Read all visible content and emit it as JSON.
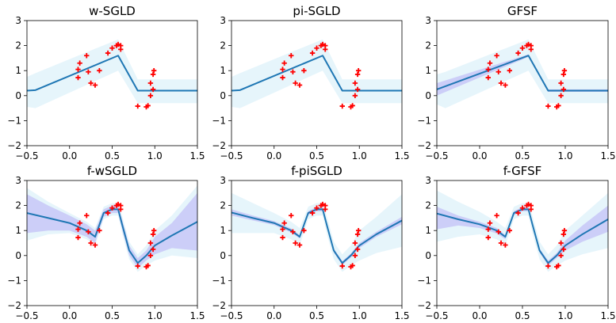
{
  "chart_data": [
    {
      "type": "line",
      "title": "w-SGLD",
      "xlim": [
        -0.5,
        1.5
      ],
      "ylim": [
        -2,
        3
      ],
      "xticks": [
        "-0.5",
        "0.0",
        "0.5",
        "1.0",
        "1.5"
      ],
      "yticks": [
        "-2",
        "-1",
        "0",
        "1",
        "2",
        "3"
      ],
      "mean": {
        "x": [
          -0.5,
          -0.4,
          0.57,
          0.8,
          1.5
        ],
        "y": [
          0.2,
          0.22,
          1.6,
          0.2,
          0.2
        ]
      },
      "band_outer": {
        "x": [
          -0.5,
          -0.4,
          0.57,
          0.8,
          1.5
        ],
        "upper": [
          0.75,
          0.9,
          2.25,
          0.65,
          0.65
        ],
        "lower": [
          -0.45,
          -0.5,
          1.0,
          -0.3,
          -0.3
        ]
      },
      "band_inner": null,
      "points": {
        "x": [
          0.1,
          0.1,
          0.12,
          0.2,
          0.22,
          0.25,
          0.3,
          0.35,
          0.45,
          0.5,
          0.55,
          0.57,
          0.6,
          0.6,
          0.8,
          0.9,
          0.92,
          0.95,
          0.95,
          0.98,
          0.98,
          0.99
        ],
        "y": [
          1.05,
          0.72,
          1.3,
          1.6,
          0.95,
          0.5,
          0.42,
          1.0,
          1.7,
          1.9,
          2.0,
          2.05,
          1.85,
          2.0,
          -0.42,
          -0.45,
          -0.4,
          0.0,
          0.5,
          0.85,
          0.25,
          1.0
        ]
      },
      "colors": {
        "mean": "#1f77b4",
        "band_outer": "#e6f5fb",
        "band_inner": "#c7c7f7",
        "points": "#ff0000"
      }
    },
    {
      "type": "line",
      "title": "pi-SGLD",
      "xlim": [
        -0.5,
        1.5
      ],
      "ylim": [
        -2,
        3
      ],
      "xticks": [
        "-0.5",
        "0.0",
        "0.5",
        "1.0",
        "1.5"
      ],
      "yticks": [
        "-2",
        "-1",
        "0",
        "1",
        "2",
        "3"
      ],
      "mean": {
        "x": [
          -0.5,
          -0.4,
          0.57,
          0.8,
          1.5
        ],
        "y": [
          0.2,
          0.22,
          1.6,
          0.2,
          0.2
        ]
      },
      "band_outer": {
        "x": [
          -0.5,
          -0.4,
          0.57,
          0.8,
          1.5
        ],
        "upper": [
          0.75,
          0.9,
          2.25,
          0.65,
          0.65
        ],
        "lower": [
          -0.45,
          -0.5,
          1.0,
          -0.3,
          -0.3
        ]
      },
      "band_inner": null,
      "points": {
        "x": [
          0.1,
          0.1,
          0.12,
          0.2,
          0.22,
          0.25,
          0.3,
          0.35,
          0.45,
          0.5,
          0.55,
          0.57,
          0.6,
          0.6,
          0.8,
          0.9,
          0.92,
          0.95,
          0.95,
          0.98,
          0.98,
          0.99
        ],
        "y": [
          1.05,
          0.72,
          1.3,
          1.6,
          0.95,
          0.5,
          0.42,
          1.0,
          1.7,
          1.9,
          2.0,
          2.05,
          1.85,
          2.0,
          -0.42,
          -0.45,
          -0.4,
          0.0,
          0.5,
          0.85,
          0.25,
          1.0
        ]
      },
      "colors": {
        "mean": "#1f77b4",
        "band_outer": "#e6f5fb",
        "band_inner": "#c7c7f7",
        "points": "#ff0000"
      }
    },
    {
      "type": "line",
      "title": "GFSF",
      "xlim": [
        -0.5,
        1.5
      ],
      "ylim": [
        -2,
        3
      ],
      "xticks": [
        "-0.5",
        "0.0",
        "0.5",
        "1.0",
        "1.5"
      ],
      "yticks": [
        "-2",
        "-1",
        "0",
        "1",
        "2",
        "3"
      ],
      "mean": {
        "x": [
          -0.5,
          0.57,
          0.8,
          1.5
        ],
        "y": [
          0.25,
          1.6,
          0.2,
          0.2
        ]
      },
      "band_outer": {
        "x": [
          -0.5,
          -0.4,
          0.57,
          0.8,
          1.5
        ],
        "upper": [
          0.85,
          0.95,
          2.25,
          0.65,
          0.65
        ],
        "lower": [
          -0.35,
          -0.5,
          1.0,
          -0.3,
          -0.3
        ]
      },
      "band_inner": {
        "x": [
          -0.5,
          0.57,
          0.8,
          1.5
        ],
        "upper": [
          0.5,
          1.65,
          0.25,
          0.25
        ],
        "lower": [
          0.0,
          1.55,
          0.15,
          0.15
        ]
      },
      "points": {
        "x": [
          0.1,
          0.1,
          0.12,
          0.2,
          0.22,
          0.25,
          0.3,
          0.35,
          0.45,
          0.5,
          0.55,
          0.57,
          0.6,
          0.6,
          0.8,
          0.9,
          0.92,
          0.95,
          0.95,
          0.98,
          0.98,
          0.99
        ],
        "y": [
          1.05,
          0.72,
          1.3,
          1.6,
          0.95,
          0.5,
          0.42,
          1.0,
          1.7,
          1.9,
          2.0,
          2.05,
          1.85,
          2.0,
          -0.42,
          -0.45,
          -0.4,
          0.0,
          0.5,
          0.85,
          0.25,
          1.0
        ]
      },
      "colors": {
        "mean": "#1f77b4",
        "band_outer": "#e6f5fb",
        "band_inner": "#c7c7f7",
        "points": "#ff0000"
      }
    },
    {
      "type": "line",
      "title": "f-wSGLD",
      "xlim": [
        -0.5,
        1.5
      ],
      "ylim": [
        -2,
        3
      ],
      "xticks": [
        "-0.5",
        "0.0",
        "0.5",
        "1.0",
        "1.5"
      ],
      "yticks": [
        "-2",
        "-1",
        "0",
        "1",
        "2",
        "3"
      ],
      "mean": {
        "x": [
          -0.5,
          -0.25,
          0.0,
          0.2,
          0.3,
          0.4,
          0.5,
          0.57,
          0.62,
          0.7,
          0.8,
          0.9,
          1.0,
          1.2,
          1.5
        ],
        "y": [
          1.7,
          1.5,
          1.3,
          1.0,
          0.75,
          1.7,
          1.85,
          1.85,
          1.2,
          0.2,
          -0.3,
          0.0,
          0.4,
          0.8,
          1.35
        ]
      },
      "band_outer": {
        "x": [
          -0.5,
          -0.25,
          0.0,
          0.2,
          0.3,
          0.4,
          0.5,
          0.57,
          0.62,
          0.7,
          0.8,
          0.9,
          1.0,
          1.2,
          1.5
        ],
        "upper": [
          2.7,
          2.15,
          1.7,
          1.35,
          1.1,
          1.95,
          2.1,
          2.1,
          1.55,
          0.55,
          0.05,
          0.4,
          1.0,
          1.6,
          2.8
        ],
        "lower": [
          0.6,
          0.85,
          0.9,
          0.65,
          0.4,
          1.45,
          1.6,
          1.6,
          0.85,
          -0.15,
          -0.65,
          -0.4,
          -0.2,
          0.0,
          -0.1
        ]
      },
      "band_inner": {
        "x": [
          -0.5,
          -0.25,
          0.0,
          0.2,
          0.3,
          0.4,
          0.5,
          0.57,
          0.62,
          0.7,
          0.8,
          0.9,
          1.0,
          1.2,
          1.5
        ],
        "upper": [
          2.45,
          2.0,
          1.6,
          1.25,
          1.0,
          1.85,
          2.0,
          2.0,
          1.4,
          0.4,
          -0.1,
          0.2,
          0.75,
          1.3,
          2.5
        ],
        "lower": [
          0.9,
          1.0,
          1.0,
          0.75,
          0.5,
          1.55,
          1.7,
          1.7,
          1.0,
          0.0,
          -0.5,
          -0.2,
          0.05,
          0.3,
          0.2
        ]
      },
      "points": {
        "x": [
          0.1,
          0.1,
          0.12,
          0.2,
          0.22,
          0.25,
          0.3,
          0.35,
          0.45,
          0.5,
          0.55,
          0.57,
          0.6,
          0.6,
          0.8,
          0.9,
          0.92,
          0.95,
          0.95,
          0.98,
          0.98,
          0.99
        ],
        "y": [
          1.05,
          0.72,
          1.3,
          1.6,
          0.95,
          0.5,
          0.42,
          1.0,
          1.7,
          1.9,
          2.0,
          2.05,
          1.85,
          2.0,
          -0.42,
          -0.45,
          -0.4,
          0.0,
          0.5,
          0.85,
          0.25,
          1.0
        ]
      },
      "colors": {
        "mean": "#1f77b4",
        "band_outer": "#e6f5fb",
        "band_inner": "#c7c7f7",
        "points": "#ff0000"
      }
    },
    {
      "type": "line",
      "title": "f-piSGLD",
      "xlim": [
        -0.5,
        1.5
      ],
      "ylim": [
        -2,
        3
      ],
      "xticks": [
        "-0.5",
        "0.0",
        "0.5",
        "1.0",
        "1.5"
      ],
      "yticks": [
        "-2",
        "-1",
        "0",
        "1",
        "2",
        "3"
      ],
      "mean": {
        "x": [
          -0.5,
          -0.25,
          0.0,
          0.2,
          0.3,
          0.4,
          0.5,
          0.57,
          0.62,
          0.7,
          0.8,
          0.9,
          1.0,
          1.2,
          1.5
        ],
        "y": [
          1.72,
          1.5,
          1.3,
          1.0,
          0.75,
          1.7,
          1.85,
          1.85,
          1.2,
          0.2,
          -0.3,
          0.0,
          0.4,
          0.85,
          1.4
        ]
      },
      "band_outer": {
        "x": [
          -0.5,
          -0.25,
          0.0,
          0.2,
          0.3,
          0.4,
          0.5,
          0.57,
          0.62,
          0.7,
          0.8,
          0.9,
          1.0,
          1.2,
          1.5
        ],
        "upper": [
          2.5,
          2.1,
          1.7,
          1.35,
          1.1,
          1.95,
          2.1,
          2.1,
          1.55,
          0.55,
          0.05,
          0.4,
          1.0,
          1.55,
          2.45
        ],
        "lower": [
          0.9,
          0.9,
          0.9,
          0.65,
          0.4,
          1.45,
          1.6,
          1.6,
          0.85,
          -0.15,
          -0.65,
          -0.4,
          -0.2,
          0.1,
          0.35
        ]
      },
      "band_inner": {
        "x": [
          -0.5,
          -0.25,
          0.0,
          0.2,
          0.3,
          0.4,
          0.5,
          0.57,
          0.62,
          0.7,
          0.8,
          0.9,
          1.0,
          1.2,
          1.5
        ],
        "upper": [
          1.85,
          1.6,
          1.38,
          1.08,
          0.82,
          1.78,
          1.93,
          1.93,
          1.28,
          0.28,
          -0.22,
          0.08,
          0.5,
          0.95,
          1.55
        ],
        "lower": [
          1.6,
          1.4,
          1.22,
          0.92,
          0.68,
          1.62,
          1.77,
          1.77,
          1.12,
          0.12,
          -0.38,
          -0.08,
          0.3,
          0.75,
          1.25
        ]
      },
      "points": {
        "x": [
          0.1,
          0.1,
          0.12,
          0.2,
          0.22,
          0.25,
          0.3,
          0.35,
          0.45,
          0.5,
          0.55,
          0.57,
          0.6,
          0.6,
          0.8,
          0.9,
          0.92,
          0.95,
          0.95,
          0.98,
          0.98,
          0.99
        ],
        "y": [
          1.05,
          0.72,
          1.3,
          1.6,
          0.95,
          0.5,
          0.42,
          1.0,
          1.7,
          1.9,
          2.0,
          2.05,
          1.85,
          2.0,
          -0.42,
          -0.45,
          -0.4,
          0.0,
          0.5,
          0.85,
          0.25,
          1.0
        ]
      },
      "colors": {
        "mean": "#1f77b4",
        "band_outer": "#e6f5fb",
        "band_inner": "#c7c7f7",
        "points": "#ff0000"
      }
    },
    {
      "type": "line",
      "title": "f-GFSF",
      "xlim": [
        -0.5,
        1.5
      ],
      "ylim": [
        -2,
        3
      ],
      "xticks": [
        "-0.5",
        "0.0",
        "0.5",
        "1.0",
        "1.5"
      ],
      "yticks": [
        "-2",
        "-1",
        "0",
        "1",
        "2",
        "3"
      ],
      "mean": {
        "x": [
          -0.5,
          -0.25,
          0.0,
          0.2,
          0.3,
          0.4,
          0.5,
          0.57,
          0.62,
          0.7,
          0.8,
          0.9,
          1.0,
          1.2,
          1.5
        ],
        "y": [
          1.68,
          1.45,
          1.25,
          1.0,
          0.75,
          1.7,
          1.85,
          1.85,
          1.2,
          0.2,
          -0.3,
          0.0,
          0.4,
          0.85,
          1.45
        ]
      },
      "band_outer": {
        "x": [
          -0.5,
          -0.25,
          0.0,
          0.2,
          0.3,
          0.4,
          0.5,
          0.57,
          0.62,
          0.7,
          0.8,
          0.9,
          1.0,
          1.2,
          1.5
        ],
        "upper": [
          2.6,
          2.15,
          1.75,
          1.35,
          1.1,
          1.95,
          2.1,
          2.1,
          1.55,
          0.55,
          0.05,
          0.4,
          1.0,
          1.6,
          2.5
        ],
        "lower": [
          0.55,
          0.75,
          0.85,
          0.65,
          0.4,
          1.45,
          1.6,
          1.6,
          0.85,
          -0.15,
          -0.65,
          -0.4,
          -0.2,
          0.05,
          0.3
        ]
      },
      "band_inner": {
        "x": [
          -0.5,
          -0.25,
          0.0,
          0.2,
          0.3,
          0.4,
          0.5,
          0.57,
          0.62,
          0.7,
          0.8,
          0.9,
          1.0,
          1.2,
          1.5
        ],
        "upper": [
          1.95,
          1.6,
          1.35,
          1.1,
          0.82,
          1.78,
          1.93,
          1.93,
          1.28,
          0.28,
          -0.2,
          0.1,
          0.6,
          1.2,
          2.0
        ],
        "lower": [
          1.05,
          1.2,
          1.1,
          0.88,
          0.65,
          1.62,
          1.77,
          1.77,
          1.12,
          0.12,
          -0.4,
          -0.1,
          0.2,
          0.55,
          0.95
        ]
      },
      "points": {
        "x": [
          0.1,
          0.1,
          0.12,
          0.2,
          0.22,
          0.25,
          0.3,
          0.35,
          0.45,
          0.5,
          0.55,
          0.57,
          0.6,
          0.6,
          0.8,
          0.9,
          0.92,
          0.95,
          0.95,
          0.98,
          0.98,
          0.99
        ],
        "y": [
          1.05,
          0.72,
          1.3,
          1.6,
          0.95,
          0.5,
          0.42,
          1.0,
          1.7,
          1.9,
          2.0,
          2.05,
          1.85,
          2.0,
          -0.42,
          -0.45,
          -0.4,
          0.0,
          0.5,
          0.85,
          0.25,
          1.0
        ]
      },
      "colors": {
        "mean": "#1f77b4",
        "band_outer": "#e6f5fb",
        "band_inner": "#c7c7f7",
        "points": "#ff0000"
      }
    }
  ]
}
